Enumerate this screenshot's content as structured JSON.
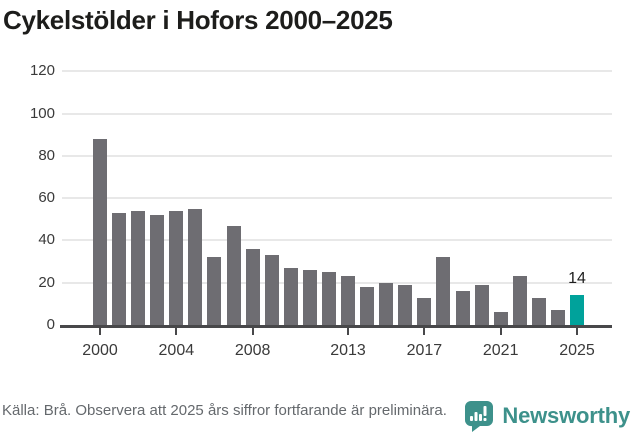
{
  "title": "Cykelstölder i Hofors 2000–2025",
  "chart_data": {
    "type": "bar",
    "x": [
      2000,
      2001,
      2002,
      2003,
      2004,
      2005,
      2006,
      2007,
      2008,
      2009,
      2010,
      2011,
      2012,
      2013,
      2014,
      2015,
      2016,
      2017,
      2018,
      2019,
      2020,
      2021,
      2022,
      2023,
      2024,
      2025
    ],
    "values": [
      88,
      53,
      54,
      52,
      54,
      55,
      32,
      47,
      36,
      33,
      27,
      26,
      25,
      23,
      18,
      20,
      19,
      13,
      32,
      16,
      19,
      6,
      23,
      13,
      7,
      14
    ],
    "title": "Cykelstölder i Hofors 2000–2025",
    "xlabel": "",
    "ylabel": "",
    "ylim": [
      0,
      120
    ],
    "yticks": [
      0,
      20,
      40,
      60,
      80,
      100,
      120
    ],
    "xticks": [
      2000,
      2004,
      2008,
      2013,
      2017,
      2021,
      2025
    ],
    "grid": true,
    "legend_position": "none",
    "highlight_year": 2025,
    "highlight_value_label": "14",
    "colors": {
      "bar": "#6e6d72",
      "highlight": "#00a29b",
      "gridline": "#e8e8e8",
      "axis_line": "#48484a",
      "tick_text": "#3a3a3a",
      "title_text": "#1d1d1b"
    }
  },
  "footer": {
    "source": "Källa: Brå. Observera att 2025 års siffror fortfarande är preliminära.",
    "brand": "Newsworthy",
    "brand_color": "#3d918b"
  }
}
